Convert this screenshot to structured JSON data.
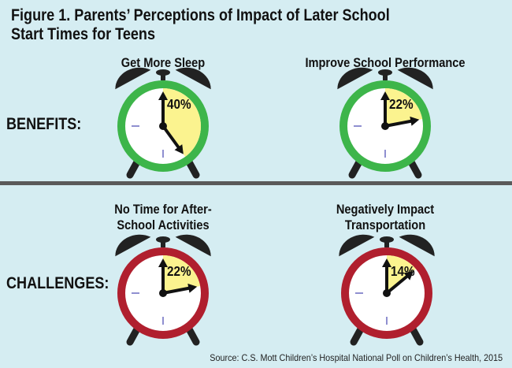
{
  "title": "Figure 1. Parents’ Perceptions of Impact of Later School Start Times for Teens",
  "rows": {
    "benefits": "BENEFITS:",
    "challenges": "CHALLENGES:"
  },
  "source": "Source: C.S. Mott Children’s Hospital National Poll on Children’s Health, 2015",
  "colors": {
    "benefit_ring": "#3db54a",
    "challenge_ring": "#b01f2e",
    "wedge": "#fbf38f",
    "background": "#d5edf2"
  },
  "chart_data": {
    "type": "pie",
    "title": "Figure 1. Parents’ Perceptions of Impact of Later School Start Times for Teens",
    "items": [
      {
        "group": "BENEFITS:",
        "label": "Get More Sleep",
        "value": 40,
        "display": "40%"
      },
      {
        "group": "BENEFITS:",
        "label": "Improve School Performance",
        "value": 22,
        "display": "22%"
      },
      {
        "group": "CHALLENGES:",
        "label": "No Time for After-School Activities",
        "value": 22,
        "display": "22%"
      },
      {
        "group": "CHALLENGES:",
        "label": "Negatively Impact Transportation",
        "value": 14,
        "display": "14%"
      }
    ]
  }
}
